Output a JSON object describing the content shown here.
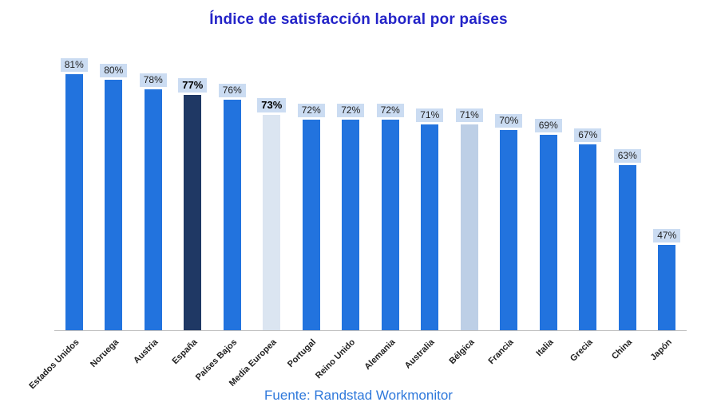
{
  "colors": {
    "title": "#2323C8",
    "source": "#2E78DB",
    "axis": "#BFBFBF",
    "label_bg": "#CBDCF2",
    "label_text": "#1F1F1F",
    "bar_normal": "#2273DE",
    "bar_dark": "#1F3864",
    "bar_pale": "#DBE5F1",
    "bar_muted": "#BDCFE6"
  },
  "chart_data": {
    "type": "bar",
    "title": "Índice de satisfacción laboral por países",
    "source": "Fuente: Randstad Workmonitor",
    "xlabel": "",
    "ylabel": "",
    "ylim": [
      30,
      86
    ],
    "grid": false,
    "legend": false,
    "value_suffix": "%",
    "categories": [
      "Estados Unidos",
      "Noruega",
      "Austria",
      "España",
      "Países Bajos",
      "Media Europea",
      "Portugal",
      "Reino Unido",
      "Alemania",
      "Australia",
      "Bélgica",
      "Francia",
      "Italia",
      "Grecia",
      "China",
      "Japón"
    ],
    "values": [
      81,
      80,
      78,
      77,
      76,
      73,
      72,
      72,
      72,
      71,
      71,
      70,
      69,
      67,
      63,
      47
    ],
    "bars": [
      {
        "label": "Estados Unidos",
        "value": 81,
        "style": "normal",
        "bold": false
      },
      {
        "label": "Noruega",
        "value": 80,
        "style": "normal",
        "bold": false
      },
      {
        "label": "Austria",
        "value": 78,
        "style": "normal",
        "bold": false
      },
      {
        "label": "España",
        "value": 77,
        "style": "dark",
        "bold": true
      },
      {
        "label": "Países Bajos",
        "value": 76,
        "style": "normal",
        "bold": false
      },
      {
        "label": "Media Europea",
        "value": 73,
        "style": "pale",
        "bold": true
      },
      {
        "label": "Portugal",
        "value": 72,
        "style": "normal",
        "bold": false
      },
      {
        "label": "Reino Unido",
        "value": 72,
        "style": "normal",
        "bold": false
      },
      {
        "label": "Alemania",
        "value": 72,
        "style": "normal",
        "bold": false
      },
      {
        "label": "Australia",
        "value": 71,
        "style": "normal",
        "bold": false
      },
      {
        "label": "Bélgica",
        "value": 71,
        "style": "muted",
        "bold": false
      },
      {
        "label": "Francia",
        "value": 70,
        "style": "normal",
        "bold": false
      },
      {
        "label": "Italia",
        "value": 69,
        "style": "normal",
        "bold": false
      },
      {
        "label": "Grecia",
        "value": 67,
        "style": "normal",
        "bold": false
      },
      {
        "label": "China",
        "value": 63,
        "style": "normal",
        "bold": false
      },
      {
        "label": "Japón",
        "value": 47,
        "style": "normal",
        "bold": false
      }
    ]
  }
}
